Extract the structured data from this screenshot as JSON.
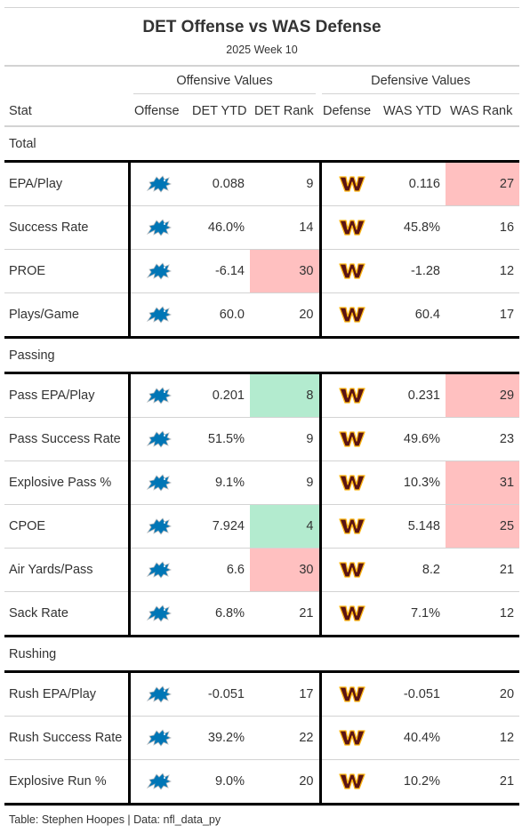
{
  "title": "DET Offense vs WAS Defense",
  "subtitle": "2025 Week 10",
  "spanners": {
    "offense": "Offensive Values",
    "defense": "Defensive Values"
  },
  "columns": {
    "stat": "Stat",
    "offense": "Offense",
    "det_ytd": "DET YTD",
    "det_rank": "DET Rank",
    "defense": "Defense",
    "was_ytd": "WAS YTD",
    "was_rank": "WAS Rank"
  },
  "colors": {
    "good": "#b3ebcf",
    "bad": "#ffc0c0",
    "lions": "#0076b6",
    "commanders": "#5a1414",
    "commanders_gold": "#ffb612"
  },
  "icons": {
    "offense": "lions-logo-icon",
    "defense": "commanders-logo-icon"
  },
  "groups": [
    {
      "name": "Total",
      "rows": [
        {
          "stat": "EPA/Play",
          "det_ytd": "0.088",
          "det_rank": "9",
          "was_ytd": "0.116",
          "was_rank": "27",
          "det_hl": "",
          "was_hl": "bad"
        },
        {
          "stat": "Success Rate",
          "det_ytd": "46.0%",
          "det_rank": "14",
          "was_ytd": "45.8%",
          "was_rank": "16",
          "det_hl": "",
          "was_hl": ""
        },
        {
          "stat": "PROE",
          "det_ytd": "-6.14",
          "det_rank": "30",
          "was_ytd": "-1.28",
          "was_rank": "12",
          "det_hl": "bad",
          "was_hl": ""
        },
        {
          "stat": "Plays/Game",
          "det_ytd": "60.0",
          "det_rank": "20",
          "was_ytd": "60.4",
          "was_rank": "17",
          "det_hl": "",
          "was_hl": ""
        }
      ]
    },
    {
      "name": "Passing",
      "rows": [
        {
          "stat": "Pass EPA/Play",
          "det_ytd": "0.201",
          "det_rank": "8",
          "was_ytd": "0.231",
          "was_rank": "29",
          "det_hl": "good",
          "was_hl": "bad"
        },
        {
          "stat": "Pass Success Rate",
          "det_ytd": "51.5%",
          "det_rank": "9",
          "was_ytd": "49.6%",
          "was_rank": "23",
          "det_hl": "",
          "was_hl": ""
        },
        {
          "stat": "Explosive Pass %",
          "det_ytd": "9.1%",
          "det_rank": "9",
          "was_ytd": "10.3%",
          "was_rank": "31",
          "det_hl": "",
          "was_hl": "bad"
        },
        {
          "stat": "CPOE",
          "det_ytd": "7.924",
          "det_rank": "4",
          "was_ytd": "5.148",
          "was_rank": "25",
          "det_hl": "good",
          "was_hl": "bad"
        },
        {
          "stat": "Air Yards/Pass",
          "det_ytd": "6.6",
          "det_rank": "30",
          "was_ytd": "8.2",
          "was_rank": "21",
          "det_hl": "bad",
          "was_hl": ""
        },
        {
          "stat": "Sack Rate",
          "det_ytd": "6.8%",
          "det_rank": "21",
          "was_ytd": "7.1%",
          "was_rank": "12",
          "det_hl": "",
          "was_hl": ""
        }
      ]
    },
    {
      "name": "Rushing",
      "rows": [
        {
          "stat": "Rush EPA/Play",
          "det_ytd": "-0.051",
          "det_rank": "17",
          "was_ytd": "-0.051",
          "was_rank": "20",
          "det_hl": "",
          "was_hl": ""
        },
        {
          "stat": "Rush Success Rate",
          "det_ytd": "39.2%",
          "det_rank": "22",
          "was_ytd": "40.4%",
          "was_rank": "12",
          "det_hl": "",
          "was_hl": ""
        },
        {
          "stat": "Explosive Run %",
          "det_ytd": "9.0%",
          "det_rank": "20",
          "was_ytd": "10.2%",
          "was_rank": "21",
          "det_hl": "",
          "was_hl": ""
        }
      ]
    }
  ],
  "footer": "Table: Stephen Hoopes | Data: nfl_data_py"
}
